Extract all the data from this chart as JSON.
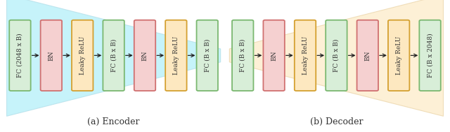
{
  "encoder": {
    "title": "(a) Encoder",
    "blocks": [
      {
        "label": "FC (2048 x B)",
        "fill": "#d8eed8",
        "edge": "#7ab870"
      },
      {
        "label": "BN",
        "fill": "#f5d0d0",
        "edge": "#d07070"
      },
      {
        "label": "Leaky ReLU",
        "fill": "#fde8c0",
        "edge": "#d4a030"
      },
      {
        "label": "FC (B x B)",
        "fill": "#d8eed8",
        "edge": "#7ab870"
      },
      {
        "label": "BN",
        "fill": "#f5d0d0",
        "edge": "#d07070"
      },
      {
        "label": "Leaky ReLU",
        "fill": "#fde8c0",
        "edge": "#d4a030"
      },
      {
        "label": "FC (B x B)",
        "fill": "#d8eed8",
        "edge": "#7ab870"
      }
    ],
    "funnel_color": "#aeeef8",
    "funnel_edge": "#b0dde8",
    "funnel_alpha": 0.7,
    "direction": "shrink"
  },
  "decoder": {
    "title": "(b) Decoder",
    "blocks": [
      {
        "label": "FC (B x B)",
        "fill": "#d8eed8",
        "edge": "#7ab870"
      },
      {
        "label": "BN",
        "fill": "#f5d0d0",
        "edge": "#d07070"
      },
      {
        "label": "Leaky ReLU",
        "fill": "#fde8c0",
        "edge": "#d4a030"
      },
      {
        "label": "FC (B x B)",
        "fill": "#d8eed8",
        "edge": "#7ab870"
      },
      {
        "label": "BN",
        "fill": "#f5d0d0",
        "edge": "#d07070"
      },
      {
        "label": "Leaky ReLU",
        "fill": "#fde8c0",
        "edge": "#d4a030"
      },
      {
        "label": "FC (B x 2048)",
        "fill": "#d8eed8",
        "edge": "#7ab870"
      }
    ],
    "funnel_color": "#fde8c0",
    "funnel_edge": "#e8d0a0",
    "funnel_alpha": 0.65,
    "direction": "expand"
  },
  "fig_bg": "#ffffff",
  "arrow_color": "#222222",
  "text_color": "#333333",
  "font_size": 6.5,
  "title_font_size": 9.0
}
